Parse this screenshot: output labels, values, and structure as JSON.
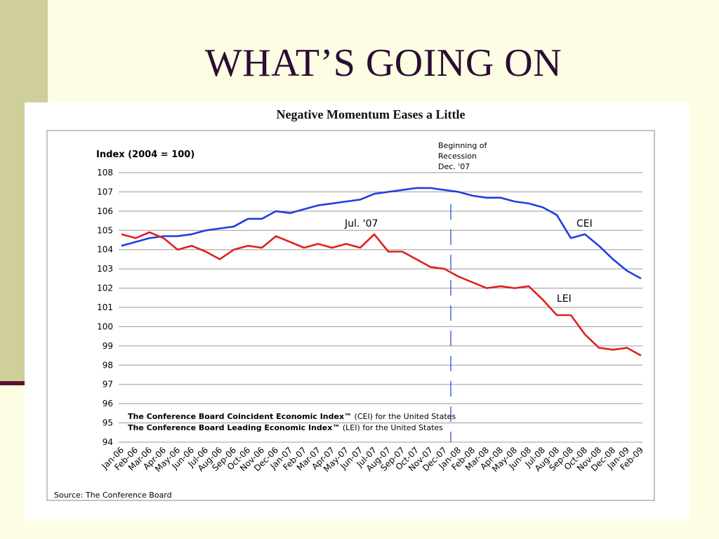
{
  "slide": {
    "title": "WHAT’S GOING ON"
  },
  "chart_data": {
    "type": "line",
    "title": "Negative Momentum Eases a Little",
    "ylabel": "Index (2004 = 100)",
    "xlabel": "",
    "ylim": [
      94,
      108
    ],
    "yticks": [
      94,
      95,
      96,
      97,
      98,
      99,
      100,
      101,
      102,
      103,
      104,
      105,
      106,
      107,
      108
    ],
    "grid": true,
    "categories": [
      "Jan-06",
      "Feb-06",
      "Mar-06",
      "Apr-06",
      "May-06",
      "Jun-06",
      "Jul-06",
      "Aug-06",
      "Sep-06",
      "Oct-06",
      "Nov-06",
      "Dec-06",
      "Jan-07",
      "Feb-07",
      "Mar-07",
      "Apr-07",
      "May-07",
      "Jun-07",
      "Jul-07",
      "Aug-07",
      "Sep-07",
      "Oct-07",
      "Nov-07",
      "Dec-07",
      "Jan-08",
      "Feb-08",
      "Mar-08",
      "Apr-08",
      "May-08",
      "Jun-08",
      "Jul-08",
      "Aug-08",
      "Sep-08",
      "Oct-08",
      "Nov-08",
      "Dec-08",
      "Jan-09",
      "Feb-09"
    ],
    "series": [
      {
        "name": "CEI",
        "color": "#1f3fe0",
        "values": [
          104.2,
          104.4,
          104.6,
          104.7,
          104.7,
          104.8,
          105.0,
          105.1,
          105.2,
          105.6,
          105.6,
          106.0,
          105.9,
          106.1,
          106.3,
          106.4,
          106.5,
          106.6,
          106.9,
          107.0,
          107.1,
          107.2,
          107.2,
          107.1,
          107.0,
          106.8,
          106.7,
          106.7,
          106.5,
          106.4,
          106.2,
          105.8,
          104.6,
          104.8,
          104.2,
          103.5,
          102.9,
          102.5
        ]
      },
      {
        "name": "LEI",
        "color": "#e01f1f",
        "values": [
          104.8,
          104.6,
          104.9,
          104.6,
          104.0,
          104.2,
          103.9,
          103.5,
          104.0,
          104.2,
          104.1,
          104.7,
          104.4,
          104.1,
          104.3,
          104.1,
          104.3,
          104.1,
          104.8,
          103.9,
          103.9,
          103.5,
          103.1,
          103.0,
          102.6,
          102.3,
          102.0,
          102.1,
          102.0,
          102.1,
          101.4,
          100.6,
          100.6,
          99.6,
          98.9,
          98.8,
          98.9,
          98.5
        ]
      }
    ],
    "annotations": {
      "recession_label": [
        "Beginning of",
        "Recession",
        "Dec. '07"
      ],
      "recession_category": "Dec-07",
      "peak_label": "Jul. '07",
      "cei_label": "CEI",
      "lei_label": "LEI"
    },
    "notes": [
      {
        "bold": "The Conference Board Coincident Economic Index™",
        "rest": " (CEI) for the United States"
      },
      {
        "bold": "The Conference Board Leading Economic Index™",
        "rest": " (LEI) for the United States"
      }
    ],
    "source": "Source: The Conference Board"
  }
}
